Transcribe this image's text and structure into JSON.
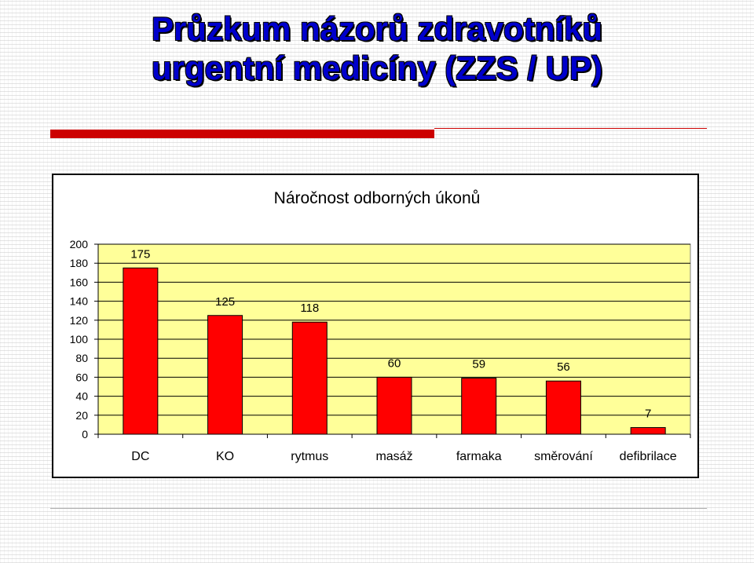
{
  "slide": {
    "title_line1": "Průzkum názorů zdravotníků",
    "title_line2": "urgentní medicíny (ZZS / UP)",
    "title_color": "#0000cc",
    "accent_color": "#cc0000"
  },
  "chart_data": {
    "type": "bar",
    "title": "Náročnost odborných úkonů",
    "categories": [
      "DC",
      "KO",
      "rytmus",
      "masáž",
      "farmaka",
      "směrování",
      "defibrilace"
    ],
    "values": [
      175,
      125,
      118,
      60,
      59,
      56,
      7
    ],
    "ylim": [
      0,
      200
    ],
    "yticks": [
      0,
      20,
      40,
      60,
      80,
      100,
      120,
      140,
      160,
      180,
      200
    ],
    "xlabel": "",
    "ylabel": "",
    "grid": true,
    "legend": false,
    "bar_color": "#ff0000",
    "plot_background": "#ffff99"
  }
}
